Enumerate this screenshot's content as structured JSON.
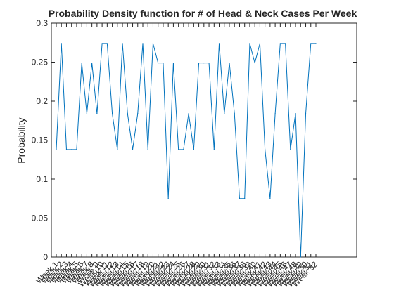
{
  "chart_data": {
    "type": "line",
    "title": "Probability Density function for # of Head & Neck Cases Per Week",
    "xlabel": "",
    "ylabel": "Probability",
    "ylim": [
      0,
      0.3
    ],
    "yticks": [
      "0",
      "0.05",
      "0.1",
      "0.15",
      "0.2",
      "0.25",
      "0.3"
    ],
    "grid": false,
    "line_color": "#0072bd",
    "categories": [
      "Week 1",
      "Week 2",
      "Week 3",
      "Week 4",
      "Week 5",
      "Week 6",
      "Week 7",
      "Week 8",
      "Week 9",
      "Week 10",
      "Week 11",
      "Week 12",
      "Week 13",
      "Week 14",
      "Week 15",
      "Week 16",
      "Week 17",
      "Week 18",
      "Week 19",
      "Week 20",
      "Week 21",
      "Week 22",
      "Week 23",
      "Week 24",
      "Week 25",
      "Week 26",
      "Week 27",
      "Week 28",
      "Week 29",
      "Week 30",
      "Week 31",
      "Week 32",
      "Week 33",
      "Week 34",
      "Week 35",
      "Week 36",
      "Week 37",
      "Week 38",
      "Week 39",
      "Week 40",
      "Week 41",
      "Week 42",
      "Week 43",
      "Week 44",
      "Week 45",
      "Week 46",
      "Week 47",
      "Week 48",
      "Week 49",
      "Week 50",
      "Week 51",
      "Week 52"
    ],
    "values": [
      0.138,
      0.274,
      0.138,
      0.138,
      0.138,
      0.249,
      0.184,
      0.249,
      0.184,
      0.274,
      0.274,
      0.184,
      0.138,
      0.274,
      0.184,
      0.138,
      0.184,
      0.274,
      0.138,
      0.274,
      0.249,
      0.249,
      0.075,
      0.249,
      0.138,
      0.138,
      0.184,
      0.138,
      0.249,
      0.249,
      0.249,
      0.138,
      0.274,
      0.184,
      0.249,
      0.184,
      0.075,
      0.075,
      0.274,
      0.249,
      0.274,
      0.138,
      0.075,
      0.184,
      0.274,
      0.274,
      0.138,
      0.184,
      0.0,
      0.184,
      0.274,
      0.274
    ]
  }
}
